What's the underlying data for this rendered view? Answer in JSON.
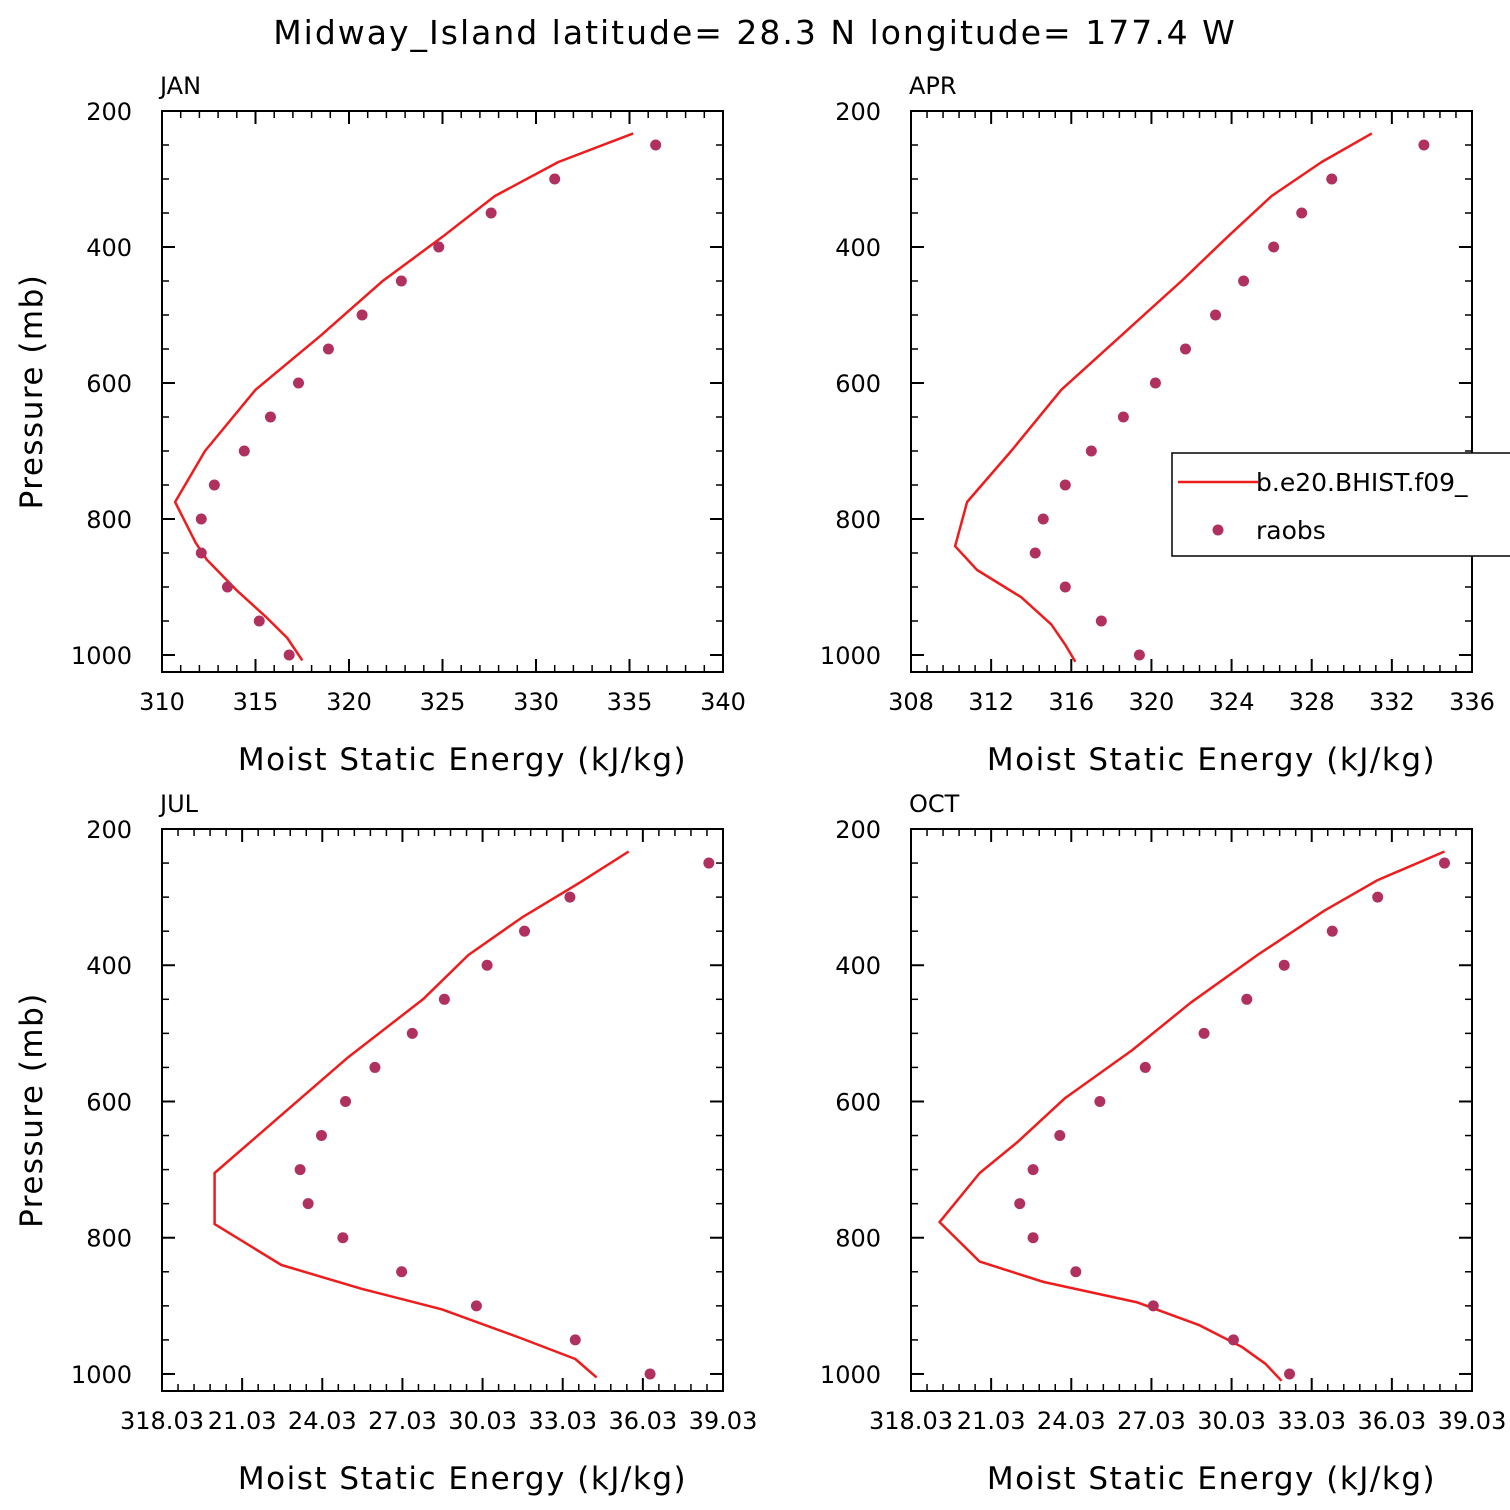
{
  "suptitle": "Midway_Island  latitude= 28.3 N longitude= 177.4 W",
  "legend": {
    "model_label": "b.e20.BHIST.f09_",
    "obs_label": "raobs"
  },
  "colors": {
    "model_line": "#ee1c1c",
    "obs_marker": "#b03060",
    "axes": "#000000",
    "background": "#ffffff"
  },
  "chart_data": [
    {
      "type": "line",
      "panel_title": "JAN",
      "xlabel": "Moist Static Energy (kJ/kg)",
      "ylabel": "Pressure (mb)",
      "xlim": [
        310,
        340
      ],
      "ylim": [
        1025,
        200
      ],
      "x_ticks": [
        "310",
        "315",
        "320",
        "325",
        "330",
        "335",
        "340"
      ],
      "y_ticks": [
        "200",
        "400",
        "600",
        "800",
        "1000"
      ],
      "series": [
        {
          "name": "b.e20.BHIST.f09_",
          "style": "line",
          "points": [
            [
              335.2,
              233
            ],
            [
              331.2,
              275
            ],
            [
              327.8,
              325
            ],
            [
              325.0,
              385
            ],
            [
              321.8,
              450
            ],
            [
              318.5,
              530
            ],
            [
              315.0,
              610
            ],
            [
              312.3,
              700
            ],
            [
              310.7,
              775
            ],
            [
              311.8,
              835
            ],
            [
              312.4,
              860
            ],
            [
              314.0,
              905
            ],
            [
              315.6,
              945
            ],
            [
              316.7,
              975
            ],
            [
              317.5,
              1008
            ]
          ]
        },
        {
          "name": "raobs",
          "style": "marker",
          "points": [
            [
              336.4,
              250
            ],
            [
              331.0,
              300
            ],
            [
              327.6,
              350
            ],
            [
              324.8,
              400
            ],
            [
              322.8,
              450
            ],
            [
              320.7,
              500
            ],
            [
              318.9,
              550
            ],
            [
              317.3,
              600
            ],
            [
              315.8,
              650
            ],
            [
              314.4,
              700
            ],
            [
              312.8,
              750
            ],
            [
              312.1,
              800
            ],
            [
              312.1,
              850
            ],
            [
              313.5,
              900
            ],
            [
              315.2,
              950
            ],
            [
              316.8,
              1000
            ]
          ]
        }
      ]
    },
    {
      "type": "line",
      "panel_title": "APR",
      "xlabel": "Moist Static Energy (kJ/kg)",
      "ylabel": "",
      "xlim": [
        308,
        336
      ],
      "ylim": [
        1025,
        200
      ],
      "x_ticks": [
        "308",
        "312",
        "316",
        "320",
        "324",
        "328",
        "332",
        "336"
      ],
      "y_ticks": [
        "200",
        "400",
        "600",
        "800",
        "1000"
      ],
      "series": [
        {
          "name": "b.e20.BHIST.f09_",
          "style": "line",
          "points": [
            [
              331.0,
              233
            ],
            [
              328.5,
              275
            ],
            [
              326.0,
              325
            ],
            [
              323.8,
              385
            ],
            [
              321.5,
              450
            ],
            [
              318.5,
              530
            ],
            [
              315.5,
              610
            ],
            [
              313.0,
              700
            ],
            [
              310.8,
              775
            ],
            [
              310.2,
              840
            ],
            [
              311.3,
              875
            ],
            [
              313.5,
              915
            ],
            [
              315.0,
              955
            ],
            [
              315.7,
              985
            ],
            [
              316.2,
              1010
            ]
          ]
        },
        {
          "name": "raobs",
          "style": "marker",
          "points": [
            [
              333.6,
              250
            ],
            [
              329.0,
              300
            ],
            [
              327.5,
              350
            ],
            [
              326.1,
              400
            ],
            [
              324.6,
              450
            ],
            [
              323.2,
              500
            ],
            [
              321.7,
              550
            ],
            [
              320.2,
              600
            ],
            [
              318.6,
              650
            ],
            [
              317.0,
              700
            ],
            [
              315.7,
              750
            ],
            [
              314.6,
              800
            ],
            [
              314.2,
              850
            ],
            [
              315.7,
              900
            ],
            [
              317.5,
              950
            ],
            [
              319.4,
              1000
            ]
          ]
        }
      ]
    },
    {
      "type": "line",
      "panel_title": "JUL",
      "xlabel": "Moist Static Energy (kJ/kg)",
      "ylabel": "Pressure (mb)",
      "xlim": [
        318.03,
        339.03
      ],
      "ylim": [
        1025,
        200
      ],
      "x_ticks": [
        "318.03",
        "21.03",
        "24.03",
        "27.03",
        "30.03",
        "33.03",
        "36.03",
        "39.03"
      ],
      "y_ticks": [
        "200",
        "400",
        "600",
        "800",
        "1000"
      ],
      "series": [
        {
          "name": "b.e20.BHIST.f09_",
          "style": "line",
          "points": [
            [
              335.5,
              233
            ],
            [
              333.7,
              278
            ],
            [
              331.5,
              330
            ],
            [
              329.5,
              385
            ],
            [
              327.8,
              450
            ],
            [
              325.0,
              535
            ],
            [
              322.5,
              620
            ],
            [
              320.0,
              705
            ],
            [
              320.0,
              780
            ],
            [
              322.5,
              840
            ],
            [
              325.5,
              875
            ],
            [
              328.5,
              905
            ],
            [
              331.5,
              948
            ],
            [
              333.5,
              978
            ],
            [
              334.3,
              1005
            ]
          ]
        },
        {
          "name": "raobs",
          "style": "marker",
          "points": [
            [
              338.5,
              250
            ],
            [
              333.3,
              300
            ],
            [
              331.6,
              350
            ],
            [
              330.2,
              400
            ],
            [
              328.6,
              450
            ],
            [
              327.4,
              500
            ],
            [
              326.0,
              550
            ],
            [
              324.9,
              600
            ],
            [
              324.0,
              650
            ],
            [
              323.2,
              700
            ],
            [
              323.5,
              750
            ],
            [
              324.8,
              800
            ],
            [
              327.0,
              850
            ],
            [
              329.8,
              900
            ],
            [
              333.5,
              950
            ],
            [
              336.3,
              1000
            ]
          ]
        }
      ]
    },
    {
      "type": "line",
      "panel_title": "OCT",
      "xlabel": "Moist Static Energy (kJ/kg)",
      "ylabel": "",
      "xlim": [
        318.03,
        339.03
      ],
      "ylim": [
        1025,
        200
      ],
      "x_ticks": [
        "318.03",
        "21.03",
        "24.03",
        "27.03",
        "30.03",
        "33.03",
        "36.03",
        "39.03"
      ],
      "y_ticks": [
        "200",
        "400",
        "600",
        "800",
        "1000"
      ],
      "series": [
        {
          "name": "b.e20.BHIST.f09_",
          "style": "line",
          "points": [
            [
              338.0,
              233
            ],
            [
              335.5,
              275
            ],
            [
              333.5,
              320
            ],
            [
              331.0,
              385
            ],
            [
              328.5,
              455
            ],
            [
              326.3,
              525
            ],
            [
              323.8,
              595
            ],
            [
              322.0,
              660
            ],
            [
              320.6,
              705
            ],
            [
              319.1,
              777
            ],
            [
              320.6,
              835
            ],
            [
              323.0,
              865
            ],
            [
              326.5,
              895
            ],
            [
              328.8,
              928
            ],
            [
              330.4,
              960
            ],
            [
              331.3,
              985
            ],
            [
              331.9,
              1010
            ]
          ]
        },
        {
          "name": "raobs",
          "style": "marker",
          "points": [
            [
              338.0,
              250
            ],
            [
              335.5,
              300
            ],
            [
              333.8,
              350
            ],
            [
              332.0,
              400
            ],
            [
              330.6,
              450
            ],
            [
              329.0,
              500
            ],
            [
              326.8,
              550
            ],
            [
              325.1,
              600
            ],
            [
              323.6,
              650
            ],
            [
              322.6,
              700
            ],
            [
              322.1,
              750
            ],
            [
              322.6,
              800
            ],
            [
              324.2,
              850
            ],
            [
              327.1,
              900
            ],
            [
              330.1,
              950
            ],
            [
              332.2,
              1000
            ]
          ]
        }
      ]
    }
  ]
}
